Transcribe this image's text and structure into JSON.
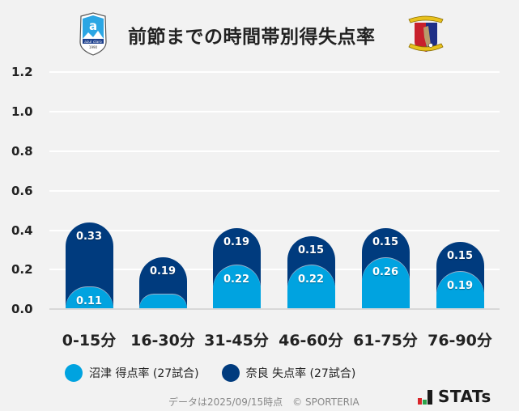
{
  "header": {
    "title": "前節までの時間帯別得失点率",
    "home_logo": "azul-claro-numazu-crest",
    "away_logo": "nara-club-crest"
  },
  "colors": {
    "home": "#00a3e0",
    "away": "#003b7e",
    "background": "#f2f2f2",
    "grid": "#ffffff"
  },
  "y_axis": {
    "ticks": [
      "1.2",
      "1.0",
      "0.8",
      "0.6",
      "0.4",
      "0.2",
      "0.0"
    ]
  },
  "bars": [
    {
      "category": "0-15分",
      "home": "0.11",
      "away": "0.33"
    },
    {
      "category": "16-30分",
      "home": "",
      "away": "0.19"
    },
    {
      "category": "31-45分",
      "home": "0.22",
      "away": "0.19"
    },
    {
      "category": "46-60分",
      "home": "0.22",
      "away": "0.15"
    },
    {
      "category": "61-75分",
      "home": "0.26",
      "away": "0.15"
    },
    {
      "category": "76-90分",
      "home": "0.19",
      "away": "0.15"
    }
  ],
  "legend": [
    {
      "label": "沼津 得点率 (27試合)",
      "color": "#00a3e0"
    },
    {
      "label": "奈良 失点率 (27試合)",
      "color": "#003b7e"
    }
  ],
  "footer": {
    "note": "データは2025/09/15時点　© SPORTERIA",
    "brand": "STATs"
  },
  "chart_data": {
    "type": "bar",
    "stacked": true,
    "title": "前節までの時間帯別得失点率",
    "categories": [
      "0-15分",
      "16-30分",
      "31-45分",
      "46-60分",
      "61-75分",
      "76-90分"
    ],
    "series": [
      {
        "name": "沼津 得点率 (27試合)",
        "color": "#00a3e0",
        "values": [
          0.11,
          0.0,
          0.22,
          0.22,
          0.26,
          0.19
        ]
      },
      {
        "name": "奈良 失点率 (27試合)",
        "color": "#003b7e",
        "values": [
          0.33,
          0.19,
          0.19,
          0.15,
          0.15,
          0.15
        ]
      }
    ],
    "xlabel": "",
    "ylabel": "",
    "ylim": [
      0,
      1.2
    ],
    "yticks": [
      0.0,
      0.2,
      0.4,
      0.6,
      0.8,
      1.0,
      1.2
    ],
    "grid": true,
    "legend_position": "bottom-left"
  }
}
